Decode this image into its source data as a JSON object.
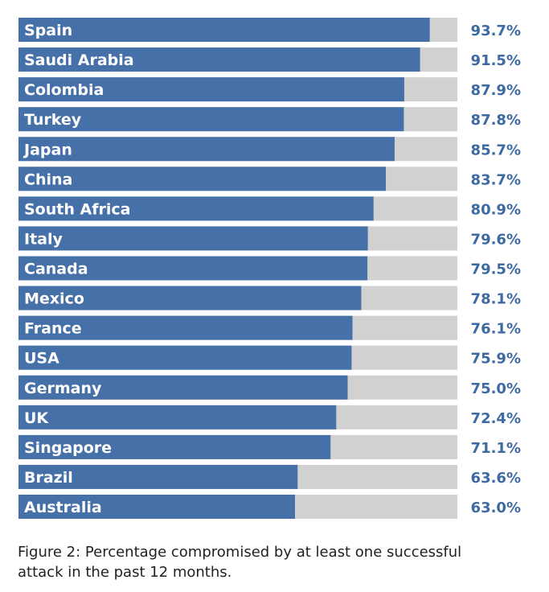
{
  "chart_data": {
    "type": "bar",
    "orientation": "horizontal",
    "categories": [
      "Spain",
      "Saudi Arabia",
      "Colombia",
      "Turkey",
      "Japan",
      "China",
      "South Africa",
      "Italy",
      "Canada",
      "Mexico",
      "France",
      "USA",
      "Germany",
      "UK",
      "Singapore",
      "Brazil",
      "Australia"
    ],
    "values": [
      93.7,
      91.5,
      87.9,
      87.8,
      85.7,
      83.7,
      80.9,
      79.6,
      79.5,
      78.1,
      76.1,
      75.9,
      75.0,
      72.4,
      71.1,
      63.6,
      63.0
    ],
    "value_labels": [
      "93.7%",
      "91.5%",
      "87.9%",
      "87.8%",
      "85.7%",
      "83.7%",
      "80.9%",
      "79.6%",
      "79.5%",
      "78.1%",
      "76.1%",
      "75.9%",
      "75.0%",
      "72.4%",
      "71.1%",
      "63.6%",
      "63.0%"
    ],
    "xlim": [
      0,
      100
    ],
    "grid": false,
    "legend": "none",
    "colors": {
      "bar": "#4571a8",
      "track": "#d1d1d1",
      "value_text": "#3d6aa3",
      "category_text": "#ffffff"
    }
  },
  "caption": {
    "line1": "Figure 2: Percentage compromised by at least one successful",
    "line2": "attack in the past 12 months."
  }
}
